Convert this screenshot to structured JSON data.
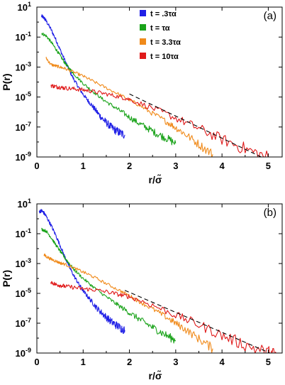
{
  "chart_data": [
    {
      "type": "line",
      "panel_label": "(a)",
      "xlabel": "r/σ̃",
      "ylabel": "P(r)",
      "xlim": [
        0,
        5.3
      ],
      "ylim": [
        1e-09,
        10
      ],
      "yscale": "log",
      "xticks": [
        "0",
        "1",
        "2",
        "3",
        "4",
        "5"
      ],
      "yticks": [
        "10",
        "10",
        "10",
        "10",
        "10",
        "10"
      ],
      "ytick_exponents": [
        "1",
        "-1",
        "-3",
        "-5",
        "-7",
        "-9"
      ],
      "legend_position": "top-center",
      "guide_line": {
        "style": "dashed",
        "x": [
          2.0,
          5.0
        ],
        "y": [
          1.6e-05,
          6e-10
        ]
      },
      "series": [
        {
          "name": "t = .3τα",
          "color": "#1f1fe6",
          "noise": 0.12,
          "x": [
            0.1,
            0.15,
            0.2,
            0.3,
            0.4,
            0.5,
            0.6,
            0.7,
            0.8,
            0.9,
            1.0,
            1.1,
            1.2,
            1.3,
            1.4,
            1.5,
            1.6,
            1.7,
            1.8,
            1.9
          ],
          "y": [
            2.5,
            2.0,
            1.2,
            0.35,
            0.08,
            0.015,
            0.003,
            0.0006,
            0.00015,
            4.5e-05,
            1.5e-05,
            6e-06,
            2.5e-06,
            1e-06,
            4e-07,
            2e-07,
            1e-07,
            6e-08,
            4e-08,
            3e-08
          ]
        },
        {
          "name": "t = τα",
          "color": "#1aa31a",
          "noise": 0.1,
          "x": [
            0.1,
            0.2,
            0.3,
            0.4,
            0.5,
            0.6,
            0.7,
            0.8,
            1.0,
            1.2,
            1.4,
            1.6,
            1.8,
            2.0,
            2.2,
            2.4,
            2.6,
            2.8,
            3.0
          ],
          "y": [
            0.18,
            0.12,
            0.05,
            0.018,
            0.006,
            0.002,
            0.0008,
            0.00035,
            8e-05,
            2.5e-05,
            8e-06,
            3e-06,
            1.2e-06,
            4.5e-07,
            1.8e-07,
            8e-08,
            3.5e-08,
            1.8e-08,
            8e-09
          ]
        },
        {
          "name": "t = 3.3τα",
          "color": "#f08a1a",
          "noise": 0.1,
          "x": [
            0.2,
            0.3,
            0.4,
            0.5,
            0.6,
            0.8,
            1.0,
            1.2,
            1.5,
            1.8,
            2.0,
            2.2,
            2.5,
            2.8,
            3.0,
            3.2,
            3.5,
            3.8
          ],
          "y": [
            0.004,
            0.0015,
            0.0012,
            0.001,
            0.0008,
            0.00045,
            0.00025,
            0.00012,
            4e-05,
            1.4e-05,
            6.5e-06,
            3e-06,
            8e-07,
            2.3e-07,
            9e-08,
            3.5e-08,
            7e-09,
            1.5e-09
          ]
        },
        {
          "name": "t = 10τα",
          "color": "#e01a1a",
          "noise": 0.14,
          "x": [
            0.3,
            0.4,
            0.5,
            0.6,
            0.8,
            1.0,
            1.2,
            1.5,
            1.8,
            2.0,
            2.5,
            3.0,
            3.5,
            4.0,
            4.5,
            5.0
          ],
          "y": [
            6e-05,
            5e-05,
            4.5e-05,
            4e-05,
            3.5e-05,
            3e-05,
            2.4e-05,
            1.6e-05,
            1e-05,
            7e-06,
            1.8e-06,
            4e-07,
            8e-08,
            1.5e-08,
            3.5e-09,
            9e-10
          ]
        }
      ]
    },
    {
      "type": "line",
      "panel_label": "(b)",
      "xlabel": "r/σ̃",
      "ylabel": "P(r)",
      "xlim": [
        0,
        5.3
      ],
      "ylim": [
        1e-09,
        10
      ],
      "yscale": "log",
      "xticks": [
        "0",
        "1",
        "2",
        "3",
        "4",
        "5"
      ],
      "yticks": [
        "10",
        "10",
        "10",
        "10",
        "10",
        "10"
      ],
      "ytick_exponents": [
        "1",
        "-1",
        "-3",
        "-5",
        "-7",
        "-9"
      ],
      "guide_line": {
        "style": "dashed",
        "x": [
          1.9,
          5.2
        ],
        "y": [
          1.6e-05,
          6e-10
        ]
      },
      "series": [
        {
          "name": "",
          "color": "#1f1fe6",
          "noise": 0.12,
          "x": [
            0.05,
            0.1,
            0.15,
            0.2,
            0.3,
            0.4,
            0.5,
            0.6,
            0.7,
            0.8,
            0.9,
            1.0,
            1.1,
            1.2,
            1.3,
            1.4,
            1.5,
            1.6,
            1.7,
            1.8,
            1.9
          ],
          "y": [
            3.0,
            3.5,
            2.5,
            1.5,
            0.4,
            0.09,
            0.017,
            0.003,
            0.0006,
            0.00015,
            4.5e-05,
            1.5e-05,
            6e-06,
            2.5e-06,
            1e-06,
            5e-07,
            2.5e-07,
            1.3e-07,
            8e-08,
            5e-08,
            3.5e-08
          ]
        },
        {
          "name": "",
          "color": "#1aa31a",
          "noise": 0.1,
          "x": [
            0.1,
            0.2,
            0.3,
            0.4,
            0.5,
            0.6,
            0.7,
            0.8,
            1.0,
            1.2,
            1.4,
            1.6,
            1.8,
            2.0,
            2.2,
            2.4,
            2.6,
            2.8,
            3.0
          ],
          "y": [
            0.2,
            0.15,
            0.06,
            0.02,
            0.007,
            0.0025,
            0.001,
            0.0004,
            0.0001,
            3e-05,
            1e-05,
            3.5e-06,
            1.3e-06,
            5e-07,
            2e-07,
            8e-08,
            3.5e-08,
            1.5e-08,
            7e-09
          ]
        },
        {
          "name": "",
          "color": "#f08a1a",
          "noise": 0.1,
          "x": [
            0.15,
            0.2,
            0.3,
            0.4,
            0.5,
            0.6,
            0.8,
            1.0,
            1.2,
            1.5,
            1.8,
            2.0,
            2.2,
            2.5,
            2.8,
            3.0,
            3.2,
            3.5,
            3.8
          ],
          "y": [
            0.004,
            0.003,
            0.002,
            0.0015,
            0.0011,
            0.0009,
            0.0005,
            0.00027,
            0.00014,
            4.5e-05,
            1.5e-05,
            7e-06,
            3e-06,
            9e-07,
            2.5e-07,
            1e-07,
            4e-08,
            9e-09,
            2e-09
          ]
        },
        {
          "name": "",
          "color": "#e01a1a",
          "noise": 0.14,
          "x": [
            0.3,
            0.4,
            0.5,
            0.6,
            0.8,
            1.0,
            1.2,
            1.5,
            1.8,
            2.0,
            2.5,
            3.0,
            3.5,
            4.0,
            4.5,
            5.0,
            5.2
          ],
          "y": [
            6e-05,
            4e-05,
            3.5e-05,
            3e-05,
            2.5e-05,
            2e-05,
            1.8e-05,
            1.3e-05,
            8e-06,
            6e-06,
            1.6e-06,
            3.5e-07,
            8e-08,
            1.5e-08,
            3.5e-09,
            1e-09,
            7e-10
          ]
        }
      ]
    }
  ]
}
